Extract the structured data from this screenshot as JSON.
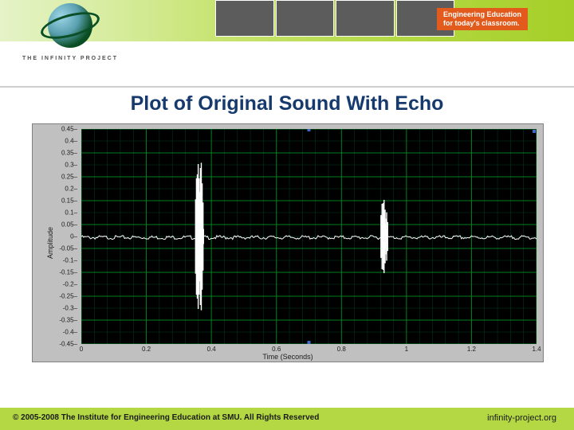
{
  "header": {
    "tagline_l1": "Engineering Education",
    "tagline_l2": "for today's classroom.",
    "logo_text": "THE INFINITY PROJECT",
    "band_gradient_start": "#e5f3c7",
    "band_gradient_end": "#a6cf28",
    "tagline_bg": "#e25b1c",
    "tagline_fg": "#ffffff"
  },
  "slide": {
    "title": "Plot of Original Sound With Echo",
    "title_color": "#163a6e",
    "title_fontsize": 25
  },
  "chart": {
    "type": "line",
    "background_color": "#000000",
    "panel_color": "#c0c0c0",
    "grid_major_color": "#008020",
    "grid_minor_color": "#004020",
    "trace_color": "#ffffff",
    "axis_text_color": "#202020",
    "xlabel": "Time (Seconds)",
    "ylabel": "Amplitude",
    "label_fontsize": 9,
    "tick_fontsize": 8,
    "xlim": [
      0,
      1.4
    ],
    "ylim": [
      -0.45,
      0.45
    ],
    "xticks": [
      0,
      0.2,
      0.4,
      0.6,
      0.8,
      1.0,
      1.2,
      1.4
    ],
    "xtick_labels": [
      "0",
      "0.2",
      "0.4",
      "0.6",
      "0.8",
      "1",
      "1.2",
      "1.4"
    ],
    "yticks": [
      -0.45,
      -0.4,
      -0.35,
      -0.3,
      -0.25,
      -0.2,
      -0.15,
      -0.1,
      -0.05,
      0,
      0.05,
      0.1,
      0.15,
      0.2,
      0.25,
      0.3,
      0.35,
      0.4,
      0.45
    ],
    "ytick_labels": [
      "-0.45",
      "-0.4",
      "-0.35",
      "-0.3",
      "-0.25",
      "-0.2",
      "-0.15",
      "-0.1",
      "-0.05",
      "0",
      "0.05",
      "0.1",
      "0.15",
      "0.2",
      "0.25",
      "0.3",
      "0.35",
      "0.4",
      "0.45"
    ],
    "minor_divisions": 5,
    "bursts": [
      {
        "t_start": 0.35,
        "t_end": 0.43,
        "peak_amp": 0.45,
        "density": 60
      },
      {
        "t_start": 0.92,
        "t_end": 0.99,
        "peak_amp": 0.225,
        "density": 45
      }
    ],
    "baseline_noise_amp": 0.004
  },
  "footer": {
    "left": "© 2005-2008  The Institute for Engineering Education at SMU.  All Rights Reserved",
    "right": "infinity-project.org",
    "bg": "#b3d843",
    "fg": "#1a1a1a"
  }
}
